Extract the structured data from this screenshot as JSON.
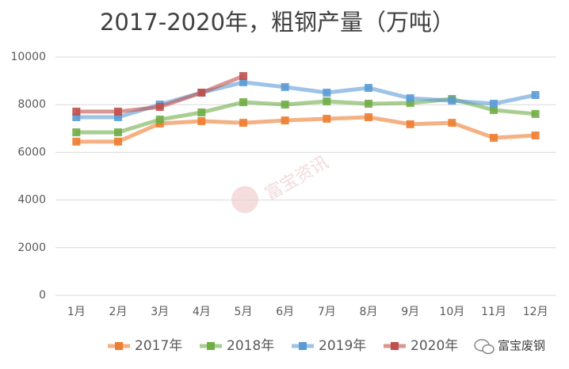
{
  "chart_data": {
    "type": "line",
    "title": "2017-2020年，粗钢产量（万吨）",
    "categories": [
      "1月",
      "2月",
      "3月",
      "4月",
      "5月",
      "6月",
      "7月",
      "8月",
      "9月",
      "10月",
      "11月",
      "12月"
    ],
    "series": [
      {
        "name": "2017年",
        "color": "#ed7d31",
        "values": [
          6450,
          6450,
          7210,
          7310,
          7240,
          7340,
          7410,
          7475,
          7180,
          7240,
          6610,
          6710
        ]
      },
      {
        "name": "2018年",
        "color": "#70ad47",
        "values": [
          6840,
          6840,
          7375,
          7675,
          8105,
          8005,
          8140,
          8040,
          8070,
          8240,
          7775,
          7610
        ]
      },
      {
        "name": "2019年",
        "color": "#5b9bd5",
        "values": [
          7475,
          7475,
          8005,
          8505,
          8940,
          8740,
          8505,
          8705,
          8270,
          8170,
          8040,
          8405
        ]
      },
      {
        "name": "2020年",
        "color": "#c0504d",
        "values": [
          7710,
          7710,
          7905,
          8505,
          9200,
          null,
          null,
          null,
          null,
          null,
          null,
          null
        ]
      }
    ],
    "ylim": [
      0,
      10000
    ],
    "yticks": [
      0,
      2000,
      4000,
      6000,
      8000,
      10000
    ],
    "grid": true,
    "legend": "bottom",
    "watermark": "富宝资讯",
    "brand": "富宝废钢"
  }
}
